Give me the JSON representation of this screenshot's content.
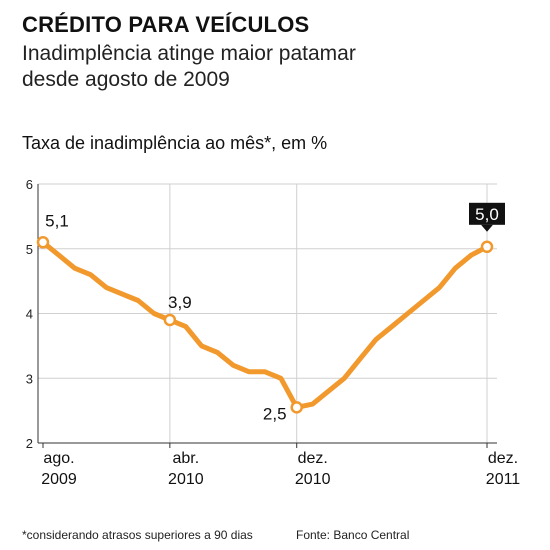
{
  "header": {
    "title": "CRÉDITO PARA VEÍCULOS",
    "subtitle": "Inadimplência atinge maior patamar desde agosto de 2009"
  },
  "footer": {
    "note": "*considerando atrasos superiores a 90 dias",
    "source": "Fonte: Banco Central"
  },
  "colors": {
    "line": "#f2992e",
    "grid": "#d0d0d0",
    "axis": "#333333",
    "highlight_box": "#111111",
    "highlight_text": "#ffffff"
  },
  "chart_data": {
    "type": "line",
    "title": "Taxa de inadimplência ao mês*, em %",
    "xlabel": "",
    "ylabel": "",
    "ylim": [
      2,
      6
    ],
    "yticks": [
      2,
      3,
      4,
      5,
      6
    ],
    "grid": true,
    "x_ticks": [
      {
        "index": 0,
        "label": "ago.",
        "sublabel": "2009"
      },
      {
        "index": 8,
        "label": "abr.",
        "sublabel": "2010"
      },
      {
        "index": 16,
        "label": "dez.",
        "sublabel": "2010"
      },
      {
        "index": 28,
        "label": "dez.",
        "sublabel": "2011"
      }
    ],
    "series": [
      {
        "values": [
          5.1,
          4.9,
          4.7,
          4.6,
          4.4,
          4.3,
          4.2,
          4.0,
          3.9,
          3.8,
          3.5,
          3.4,
          3.2,
          3.1,
          3.1,
          3.0,
          2.55,
          2.6,
          2.8,
          3.0,
          3.3,
          3.6,
          3.8,
          4.0,
          4.2,
          4.4,
          4.7,
          4.9,
          5.03
        ]
      }
    ],
    "annotations": [
      {
        "index": 0,
        "text": "5,1",
        "style": "plain"
      },
      {
        "index": 8,
        "text": "3,9",
        "style": "plain"
      },
      {
        "index": 16,
        "text": "2,5",
        "style": "plain"
      },
      {
        "index": 28,
        "text": "5,0",
        "style": "highlight"
      }
    ]
  }
}
